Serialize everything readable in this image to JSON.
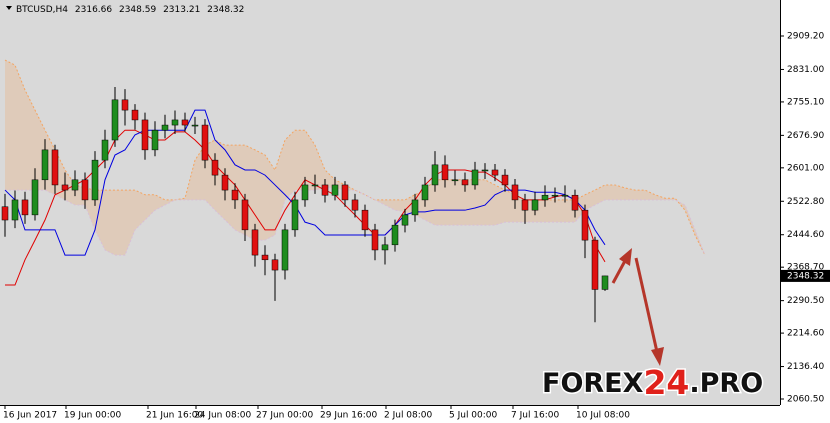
{
  "chart_data": {
    "type": "candlestick",
    "symbol": "BTCUSD,H4",
    "series": {
      "open": [
        2510,
        2479,
        2526,
        2491,
        2573,
        2643,
        2561,
        2549,
        2573,
        2526,
        2619,
        2666,
        2760,
        2736,
        2713,
        2643,
        2689,
        2701,
        2713,
        2701,
        2701,
        2619,
        2584,
        2549,
        2526,
        2456,
        2397,
        2386,
        2362,
        2456,
        2526,
        2561,
        2561,
        2537,
        2561,
        2526,
        2502,
        2456,
        2409,
        2421,
        2467,
        2491,
        2526,
        2561,
        2608,
        2573,
        2573,
        2561,
        2596,
        2596,
        2584,
        2561,
        2526,
        2502,
        2526,
        2537,
        2537,
        2537,
        2502,
        2432,
        2316.66
      ],
      "high": [
        2540,
        2548,
        2545,
        2600,
        2668,
        2655,
        2590,
        2595,
        2590,
        2640,
        2690,
        2790,
        2785,
        2750,
        2730,
        2710,
        2725,
        2735,
        2730,
        2720,
        2715,
        2635,
        2600,
        2565,
        2540,
        2470,
        2420,
        2400,
        2470,
        2545,
        2580,
        2585,
        2575,
        2580,
        2570,
        2540,
        2515,
        2470,
        2440,
        2480,
        2505,
        2540,
        2580,
        2640,
        2630,
        2595,
        2590,
        2615,
        2612,
        2610,
        2598,
        2575,
        2540,
        2545,
        2560,
        2555,
        2560,
        2550,
        2515,
        2440,
        2348.59
      ],
      "low": [
        2440,
        2460,
        2470,
        2478,
        2550,
        2540,
        2525,
        2535,
        2505,
        2512,
        2600,
        2650,
        2700,
        2690,
        2620,
        2628,
        2670,
        2680,
        2685,
        2680,
        2600,
        2560,
        2525,
        2505,
        2430,
        2370,
        2350,
        2290,
        2340,
        2440,
        2510,
        2540,
        2520,
        2525,
        2510,
        2485,
        2440,
        2385,
        2375,
        2405,
        2450,
        2475,
        2510,
        2545,
        2555,
        2560,
        2545,
        2550,
        2575,
        2570,
        2545,
        2505,
        2470,
        2490,
        2510,
        2520,
        2520,
        2485,
        2390,
        2240,
        2313.21
      ],
      "close": [
        2479,
        2526,
        2491,
        2573,
        2643,
        2561,
        2549,
        2573,
        2526,
        2619,
        2666,
        2760,
        2736,
        2713,
        2643,
        2689,
        2701,
        2713,
        2701,
        2701,
        2619,
        2584,
        2549,
        2526,
        2456,
        2397,
        2386,
        2362,
        2456,
        2526,
        2561,
        2561,
        2537,
        2561,
        2526,
        2502,
        2456,
        2409,
        2421,
        2467,
        2491,
        2526,
        2561,
        2608,
        2573,
        2573,
        2561,
        2596,
        2596,
        2584,
        2561,
        2526,
        2502,
        2526,
        2537,
        2537,
        2537,
        2502,
        2432,
        2316.66,
        2348.32
      ]
    },
    "up_color": "#1e8c1e",
    "down_color": "#e01010",
    "lines": [
      {
        "color": "#e00000",
        "values": [
          2327,
          2327,
          2386,
          2432,
          2479,
          2538,
          2549,
          2561,
          2573,
          2596,
          2619,
          2666,
          2689,
          2689,
          2678,
          2666,
          2666,
          2685,
          2685,
          2666,
          2643,
          2608,
          2584,
          2561,
          2526,
          2491,
          2456,
          2456,
          2502,
          2538,
          2573,
          2561,
          2549,
          2538,
          2514,
          2491,
          2467,
          2444,
          2444,
          2467,
          2502,
          2526,
          2561,
          2584,
          2596,
          2596,
          2596,
          2591,
          2591,
          2577,
          2561,
          2538,
          2526,
          2526,
          2526,
          2533,
          2538,
          2526,
          2491,
          2421,
          2381
        ]
      },
      {
        "color": "#0000e0",
        "values": [
          2549,
          2526,
          2456,
          2456,
          2456,
          2456,
          2397,
          2397,
          2397,
          2456,
          2573,
          2631,
          2643,
          2678,
          2689,
          2689,
          2689,
          2689,
          2689,
          2736,
          2736,
          2666,
          2643,
          2608,
          2596,
          2596,
          2584,
          2561,
          2538,
          2514,
          2474,
          2467,
          2444,
          2444,
          2444,
          2444,
          2444,
          2444,
          2444,
          2467,
          2491,
          2498,
          2498,
          2502,
          2502,
          2502,
          2502,
          2507,
          2514,
          2538,
          2549,
          2549,
          2549,
          2544,
          2544,
          2544,
          2538,
          2526,
          2502,
          2456,
          2421
        ]
      }
    ],
    "cloud": [
      {
        "color": "#f4a460",
        "values": [
          2853,
          2841,
          2783,
          2736,
          2689,
          2643,
          2596,
          2561,
          2554,
          2549,
          2549,
          2549,
          2549,
          2549,
          2538,
          2538,
          2526,
          2526,
          2530,
          2619,
          2654,
          2666,
          2654,
          2654,
          2654,
          2643,
          2631,
          2596,
          2666,
          2689,
          2689,
          2654,
          2596,
          2573,
          2561,
          2549,
          2538,
          2526,
          2526,
          2526,
          2526,
          2538,
          2549,
          2573,
          2573,
          2573,
          2573,
          2573,
          2573,
          2561,
          2549,
          2538,
          2526,
          2526,
          2526,
          2526,
          2526,
          2526,
          2538,
          2549,
          2561,
          2561,
          2554,
          2549,
          2549,
          2538,
          2530,
          2530,
          2502,
          2444,
          2397
        ]
      },
      {
        "color": "#d8bfd8",
        "values": [
          2549,
          2549,
          2549,
          2549,
          2549,
          2538,
          2526,
          2514,
          2514,
          2456,
          2409,
          2397,
          2397,
          2456,
          2479,
          2502,
          2514,
          2526,
          2526,
          2526,
          2526,
          2502,
          2479,
          2456,
          2444,
          2432,
          2432,
          2444,
          2526,
          2549,
          2549,
          2549,
          2554,
          2554,
          2549,
          2549,
          2538,
          2526,
          2514,
          2502,
          2498,
          2491,
          2479,
          2467,
          2467,
          2467,
          2467,
          2467,
          2467,
          2467,
          2474,
          2474,
          2474,
          2474,
          2474,
          2474,
          2474,
          2474,
          2502,
          2514,
          2526,
          2526,
          2526,
          2526,
          2526,
          2526,
          2526,
          2526,
          2514,
          2456,
          2397
        ]
      }
    ],
    "xlim": [
      -0.5,
      77.5
    ],
    "xticks": [
      {
        "value": 0,
        "label": "16 Jun 2017"
      },
      {
        "value": 6.1,
        "label": "19 Jun 00:00"
      },
      {
        "value": 14.3,
        "label": "21 Jun 16:00"
      },
      {
        "value": 19.1,
        "label": "24 Jun 08:00"
      },
      {
        "value": 25.3,
        "label": "27 Jun 00:00"
      },
      {
        "value": 31.7,
        "label": "29 Jun 16:00"
      },
      {
        "value": 38.1,
        "label": "2 Jul 08:00"
      },
      {
        "value": 44.6,
        "label": "5 Jul 00:00"
      },
      {
        "value": 50.8,
        "label": "7 Jul 16:00"
      },
      {
        "value": 57.3,
        "label": "10 Jul 08:00"
      }
    ],
    "ylim": [
      2046.5,
      2993.4
    ],
    "yticks": [
      {
        "value": 2909.2,
        "label": "2909.20"
      },
      {
        "value": 2831,
        "label": "2831.00"
      },
      {
        "value": 2755.1,
        "label": "2755.10"
      },
      {
        "value": 2676.9,
        "label": "2676.90"
      },
      {
        "value": 2601,
        "label": "2601.00"
      },
      {
        "value": 2522.8,
        "label": "2522.80"
      },
      {
        "value": 2444.6,
        "label": "2444.60"
      },
      {
        "value": 2368.7,
        "label": "2368.70"
      },
      {
        "value": 2290.5,
        "label": "2290.50"
      },
      {
        "value": 2214.6,
        "label": "2214.60"
      },
      {
        "value": 2136.4,
        "label": "2136.40"
      },
      {
        "value": 2060.5,
        "label": "2060.50"
      }
    ],
    "grid": false,
    "watermark": [
      "FOREX",
      "24",
      ".PRO"
    ]
  }
}
